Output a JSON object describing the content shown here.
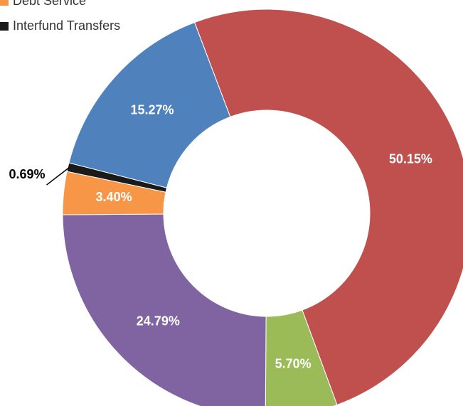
{
  "chart_data": {
    "type": "pie",
    "donut": true,
    "categories": [
      null,
      null,
      null,
      "Debt Service",
      "Interfund Transfers",
      null
    ],
    "values": [
      50.15,
      5.7,
      24.79,
      3.4,
      0.69,
      15.27
    ],
    "value_labels": [
      "50.15%",
      "5.70%",
      "24.79%",
      "3.40%",
      "0.69%",
      "15.27%"
    ],
    "colors": [
      "#c0504d",
      "#9bbb59",
      "#8064a2",
      "#f79646",
      "#1a1a1a",
      "#4f81bd"
    ]
  }
}
